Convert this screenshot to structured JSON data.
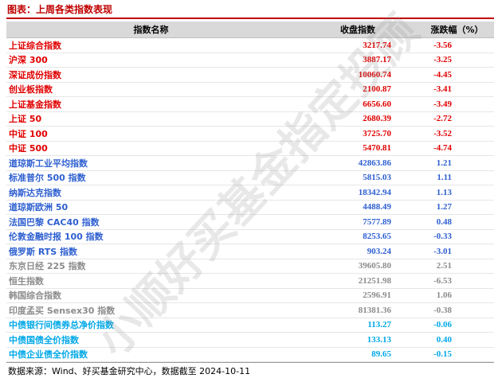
{
  "header": {
    "title": "图表：上周各类指数表现"
  },
  "table": {
    "columns": [
      "指数名称",
      "收盘指数",
      "涨跌幅（%）"
    ],
    "groups": [
      {
        "color": "#e00000",
        "rows": [
          [
            "上证综合指数",
            "3217.74",
            "-3.56"
          ],
          [
            "沪深 300",
            "3887.17",
            "-3.25"
          ],
          [
            "深证成份指数",
            "10060.74",
            "-4.45"
          ],
          [
            "创业板指数",
            "2100.87",
            "-3.41"
          ],
          [
            "上证基金指数",
            "6656.60",
            "-3.49"
          ],
          [
            "上证 50",
            "2680.39",
            "-2.72"
          ],
          [
            "中证 100",
            "3725.70",
            "-3.52"
          ],
          [
            "中证 500",
            "5470.81",
            "-4.74"
          ]
        ]
      },
      {
        "color": "#2e5fd0",
        "rows": [
          [
            "道琼斯工业平均指数",
            "42863.86",
            "1.21"
          ],
          [
            "标准普尔 500 指数",
            "5815.03",
            "1.11"
          ],
          [
            "纳斯达克指数",
            "18342.94",
            "1.13"
          ],
          [
            "道琼斯欧洲 50",
            "4488.49",
            "1.27"
          ],
          [
            "法国巴黎 CAC40 指数",
            "7577.89",
            "0.48"
          ],
          [
            "伦敦金融时报 100 指数",
            "8253.65",
            "-0.33"
          ],
          [
            "俄罗斯 RTS 指数",
            "903.24",
            "-3.01"
          ]
        ]
      },
      {
        "color": "#8c8c8c",
        "rows": [
          [
            "东京日经 225 指数",
            "39605.80",
            "2.51"
          ],
          [
            "恒生指数",
            "21251.98",
            "-6.53"
          ],
          [
            "韩国综合指数",
            "2596.91",
            "1.06"
          ],
          [
            "印度孟买 Sensex30 指数",
            "81381.36",
            "-0.38"
          ]
        ]
      },
      {
        "color": "#00a8e8",
        "rows": [
          [
            "中债银行间债券总净价指数",
            "113.27",
            "-0.06"
          ],
          [
            "中债国债全价指数",
            "133.13",
            "0.40"
          ],
          [
            "中债企业债全价指数",
            "89.65",
            "-0.15"
          ]
        ]
      }
    ]
  },
  "source": "数据来源：Wind、好买基金研究中心，数据截至 2024-10-11",
  "watermark": "小顺好买基金指定投顾"
}
